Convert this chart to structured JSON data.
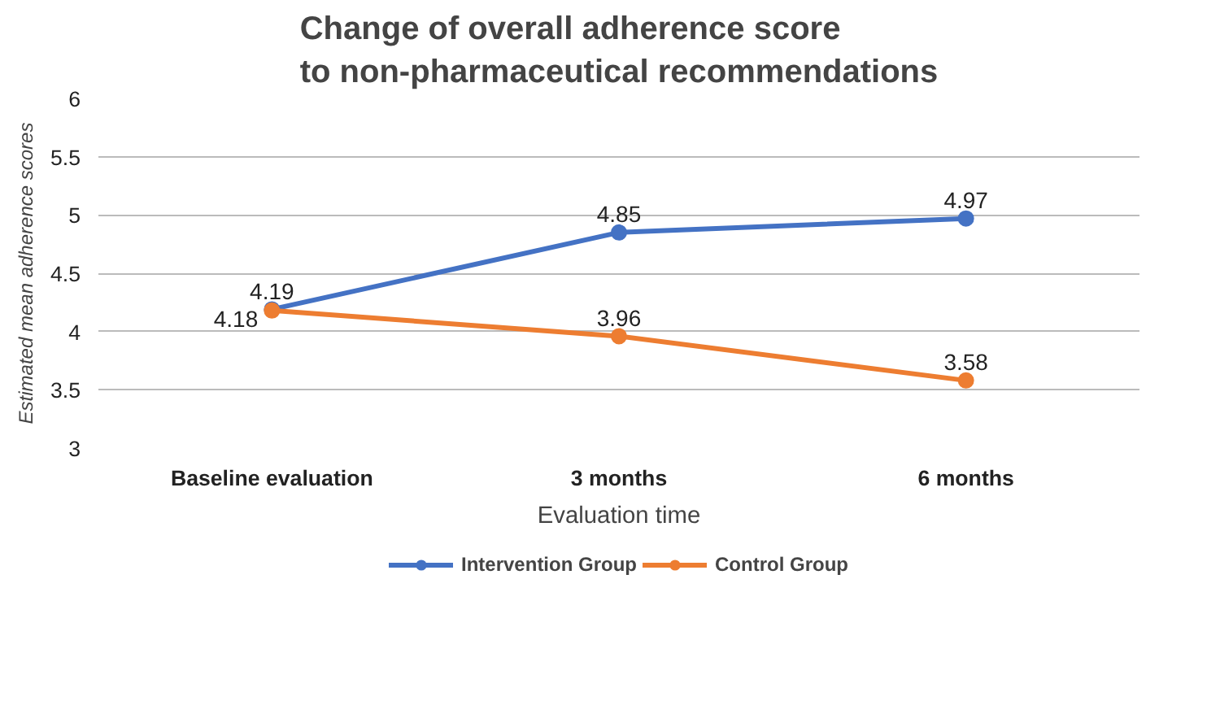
{
  "chart_data": {
    "type": "line",
    "title": "Change of overall adherence score\nto non-pharmaceutical recommendations",
    "xlabel": "Evaluation time",
    "ylabel": "Estimated mean adherence scores",
    "categories": [
      "Baseline evaluation",
      "3 months",
      "6 months"
    ],
    "series": [
      {
        "name": "Intervention Group",
        "color": "#4472c4",
        "values": [
          4.19,
          4.85,
          4.97
        ]
      },
      {
        "name": "Control Group",
        "color": "#ed7d31",
        "values": [
          4.18,
          3.96,
          3.58
        ]
      }
    ],
    "ylim": [
      3,
      6
    ],
    "yticks": [
      3,
      3.5,
      4,
      4.5,
      5,
      5.5,
      6
    ],
    "grid": "y",
    "legend": "bottom",
    "marker": "circle",
    "line_style": "solid",
    "data_labels": true
  }
}
